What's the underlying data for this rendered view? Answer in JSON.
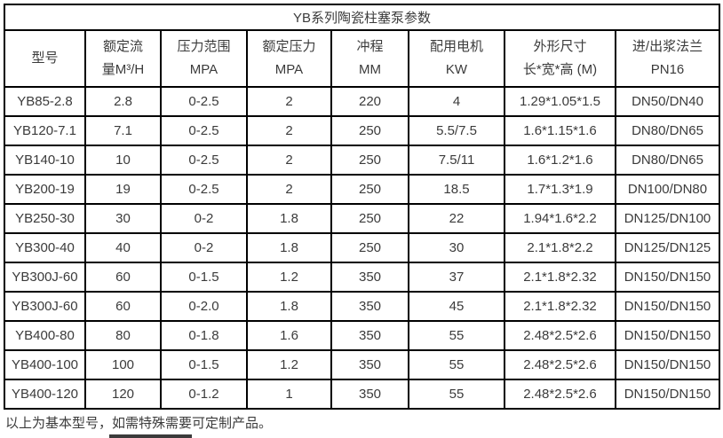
{
  "title": "YB系列陶瓷柱塞泵参数",
  "colors": {
    "border": "#000000",
    "text": "#3b3b3b",
    "background": "#ffffff"
  },
  "table": {
    "headers": [
      {
        "line1": "型号",
        "line2": ""
      },
      {
        "line1": "额定流",
        "line2": "量M³/H"
      },
      {
        "line1": "压力范围",
        "line2": "MPA"
      },
      {
        "line1": "额定压力",
        "line2": "MPA"
      },
      {
        "line1": "冲程",
        "line2": "MM"
      },
      {
        "line1": "配用电机",
        "line2": "KW"
      },
      {
        "line1": "外形尺寸",
        "line2": "长*宽*高 (M)"
      },
      {
        "line1": "进/出浆法兰",
        "line2": "PN16"
      }
    ],
    "rows": [
      [
        "YB85-2.8",
        "2.8",
        "0-2.5",
        "2",
        "220",
        "4",
        "1.29*1.05*1.5",
        "DN50/DN40"
      ],
      [
        "YB120-7.1",
        "7.1",
        "0-2.5",
        "2",
        "250",
        "5.5/7.5",
        "1.6*1.15*1.6",
        "DN80/DN65"
      ],
      [
        "YB140-10",
        "10",
        "0-2.5",
        "2",
        "250",
        "7.5/11",
        "1.6*1.2*1.6",
        "DN80/DN65"
      ],
      [
        "YB200-19",
        "19",
        "0-2.5",
        "2",
        "250",
        "18.5",
        "1.7*1.3*1.9",
        "DN100/DN80"
      ],
      [
        "YB250-30",
        "30",
        "0-2",
        "1.8",
        "250",
        "22",
        "1.94*1.6*2.2",
        "DN125/DN100"
      ],
      [
        "YB300-40",
        "40",
        "0-2",
        "1.8",
        "250",
        "30",
        "2.1*1.8*2.2",
        "DN125/DN125"
      ],
      [
        "YB300J-60",
        "60",
        "0-1.5",
        "1.2",
        "350",
        "37",
        "2.1*1.8*2.32",
        "DN150/DN150"
      ],
      [
        "YB300J-60",
        "60",
        "0-2.0",
        "1.8",
        "350",
        "45",
        "2.1*1.8*2.32",
        "DN150/DN150"
      ],
      [
        "YB400-80",
        "80",
        "0-1.8",
        "1.6",
        "350",
        "55",
        "2.48*2.5*2.6",
        "DN150/DN150"
      ],
      [
        "YB400-100",
        "100",
        "0-1.5",
        "1.2",
        "350",
        "55",
        "2.48*2.5*2.6",
        "DN150/DN150"
      ],
      [
        "YB400-120",
        "120",
        "0-1.2",
        "1",
        "350",
        "55",
        "2.48*2.5*2.6",
        "DN150/DN150"
      ]
    ]
  },
  "footer_note": "以上为基本型号，如需特殊需要可定制产品。"
}
